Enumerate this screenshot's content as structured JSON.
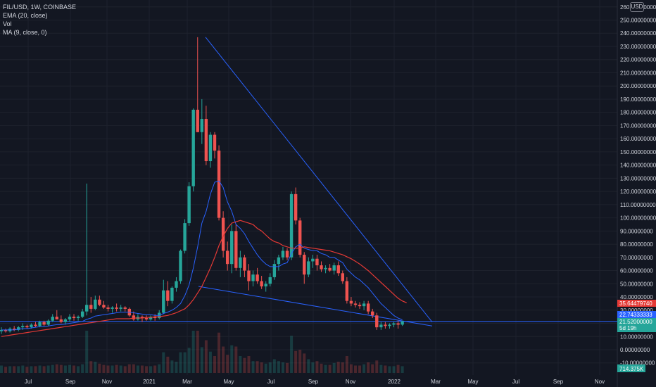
{
  "legend": {
    "symbol": "FIL/USD, 1W, COINBASE",
    "ema": "EMA (20, close)",
    "vol": "Vol",
    "ma": "MA (9, close, 0)"
  },
  "currency_button": "USD",
  "price_tags": {
    "ma_value": "35.64479740",
    "ema_value": "22.74333333",
    "last_price": "21.52000000",
    "countdown": "5d 19h",
    "volume": "714.375K"
  },
  "colors": {
    "background": "#131722",
    "up": "#26a69a",
    "down": "#ef5350",
    "ema": "#2962ff",
    "ma": "#e53935",
    "trendline": "#2962ff",
    "grid": "#1e222d",
    "axis_text": "#d1d4dc"
  },
  "chart_data": {
    "type": "candlestick",
    "title": "FIL/USD, 1W, COINBASE",
    "y_axis": {
      "min": -10,
      "max": 260,
      "step": 10,
      "tick_labels": [
        "-10.00000000",
        "0.00000000",
        "10.00000000",
        "20.00000000",
        "30.00000000",
        "40.00000000",
        "50.00000000",
        "60.00000000",
        "70.00000000",
        "80.00000000",
        "90.00000000",
        "100.00000000",
        "110.00000000",
        "120.00000000",
        "130.00000000",
        "140.00000000",
        "150.00000000",
        "160.00000000",
        "170.00000000",
        "180.00000000",
        "190.00000000",
        "200.00000000",
        "210.00000000",
        "220.00000000",
        "230.00000000",
        "240.00000000",
        "250.00000000",
        "260.00000000"
      ]
    },
    "x_axis": {
      "tick_labels": [
        "Jul",
        "Sep",
        "Nov",
        "2021",
        "Mar",
        "May",
        "Jul",
        "Sep",
        "Nov",
        "2022",
        "Mar",
        "May",
        "Jul",
        "Sep",
        "Nov"
      ]
    },
    "grid": true,
    "candles": [
      [
        14,
        17,
        12,
        15
      ],
      [
        15,
        16,
        13,
        14
      ],
      [
        14,
        17,
        13,
        16
      ],
      [
        16,
        18,
        14,
        15
      ],
      [
        15,
        18,
        14,
        17
      ],
      [
        17,
        20,
        15,
        18
      ],
      [
        18,
        19,
        16,
        17
      ],
      [
        17,
        20,
        16,
        19
      ],
      [
        19,
        21,
        17,
        18
      ],
      [
        18,
        22,
        17,
        21
      ],
      [
        21,
        22,
        18,
        19
      ],
      [
        19,
        23,
        18,
        22
      ],
      [
        22,
        27,
        21,
        25
      ],
      [
        25,
        30,
        23,
        23
      ],
      [
        23,
        26,
        20,
        21
      ],
      [
        21,
        24,
        19,
        23
      ],
      [
        23,
        27,
        21,
        25
      ],
      [
        25,
        27,
        22,
        24
      ],
      [
        24,
        26,
        22,
        25
      ],
      [
        25,
        31,
        24,
        29
      ],
      [
        29,
        126,
        26,
        34
      ],
      [
        34,
        40,
        28,
        31
      ],
      [
        31,
        41,
        30,
        38
      ],
      [
        38,
        41,
        33,
        34
      ],
      [
        34,
        37,
        31,
        32
      ],
      [
        32,
        34,
        29,
        31
      ],
      [
        31,
        33,
        28,
        32
      ],
      [
        32,
        35,
        29,
        31
      ],
      [
        31,
        34,
        29,
        32
      ],
      [
        32,
        33,
        29,
        31
      ],
      [
        31,
        32,
        25,
        26
      ],
      [
        26,
        29,
        22,
        23
      ],
      [
        23,
        27,
        22,
        25
      ],
      [
        25,
        26,
        21,
        24
      ],
      [
        24,
        26,
        22,
        23
      ],
      [
        23,
        26,
        22,
        25
      ],
      [
        25,
        27,
        22,
        24
      ],
      [
        24,
        30,
        23,
        28
      ],
      [
        28,
        53,
        27,
        45
      ],
      [
        45,
        52,
        33,
        37
      ],
      [
        37,
        48,
        35,
        47
      ],
      [
        47,
        55,
        44,
        52
      ],
      [
        52,
        76,
        50,
        75
      ],
      [
        75,
        99,
        73,
        96
      ],
      [
        96,
        127,
        94,
        124
      ],
      [
        124,
        183,
        120,
        182
      ],
      [
        182,
        237,
        165,
        165
      ],
      [
        165,
        190,
        156,
        175
      ],
      [
        175,
        185,
        140,
        143
      ],
      [
        143,
        165,
        138,
        163
      ],
      [
        163,
        165,
        145,
        151
      ],
      [
        151,
        155,
        98,
        100
      ],
      [
        100,
        105,
        70,
        75
      ],
      [
        75,
        82,
        60,
        65
      ],
      [
        65,
        95,
        58,
        90
      ],
      [
        90,
        95,
        60,
        62
      ],
      [
        62,
        75,
        55,
        70
      ],
      [
        70,
        72,
        55,
        60
      ],
      [
        60,
        65,
        45,
        52
      ],
      [
        52,
        60,
        48,
        57
      ],
      [
        57,
        62,
        50,
        52
      ],
      [
        52,
        56,
        46,
        48
      ],
      [
        48,
        52,
        44,
        50
      ],
      [
        50,
        58,
        48,
        55
      ],
      [
        55,
        68,
        53,
        65
      ],
      [
        65,
        72,
        60,
        70
      ],
      [
        70,
        78,
        68,
        75
      ],
      [
        75,
        77,
        68,
        70
      ],
      [
        70,
        120,
        68,
        118
      ],
      [
        118,
        123,
        95,
        98
      ],
      [
        98,
        100,
        70,
        72
      ],
      [
        72,
        74,
        50,
        57
      ],
      [
        57,
        70,
        55,
        67
      ],
      [
        67,
        72,
        62,
        69
      ],
      [
        69,
        72,
        60,
        64
      ],
      [
        64,
        67,
        59,
        61
      ],
      [
        61,
        64,
        58,
        62
      ],
      [
        62,
        65,
        59,
        60
      ],
      [
        60,
        66,
        57,
        64
      ],
      [
        64,
        67,
        56,
        58
      ],
      [
        58,
        60,
        50,
        52
      ],
      [
        52,
        55,
        35,
        37
      ],
      [
        37,
        40,
        33,
        35
      ],
      [
        35,
        37,
        32,
        34
      ],
      [
        34,
        36,
        31,
        33
      ],
      [
        33,
        37,
        30,
        35
      ],
      [
        35,
        37,
        27,
        29
      ],
      [
        29,
        31,
        24,
        26
      ],
      [
        26,
        28,
        15,
        17
      ],
      [
        17,
        21,
        15,
        19
      ],
      [
        19,
        21,
        16,
        18
      ],
      [
        18,
        20,
        16,
        19
      ],
      [
        19,
        21,
        17,
        20
      ],
      [
        20,
        22,
        16,
        19
      ],
      [
        19,
        22,
        18,
        21.5
      ]
    ],
    "ema_20": [
      15,
      15,
      15,
      15,
      15.5,
      16,
      16,
      16.5,
      17,
      17.5,
      17.5,
      18,
      18.5,
      19,
      19,
      19.5,
      20,
      20.5,
      21,
      21.5,
      23,
      24,
      25.5,
      26,
      26.5,
      27,
      27.5,
      28,
      28.5,
      28.5,
      28.5,
      28,
      27.5,
      27,
      26.5,
      26.5,
      26,
      26,
      27.5,
      28.5,
      30,
      32,
      35,
      41,
      49,
      62,
      78,
      96,
      105,
      118,
      127,
      128,
      123,
      112,
      105,
      95,
      92,
      88,
      82,
      77,
      72,
      68,
      65,
      63,
      63,
      63,
      65,
      66,
      73,
      78,
      80,
      77,
      76,
      75,
      75,
      73,
      72,
      70,
      70,
      68,
      66,
      61,
      58,
      55,
      53,
      50,
      47,
      43,
      39,
      35,
      32,
      29,
      26,
      24,
      22.7
    ],
    "ma_9": [
      10,
      10.5,
      11,
      11.5,
      12,
      12.5,
      13,
      13.5,
      14,
      14.5,
      15,
      15.5,
      16,
      16.5,
      17,
      17.5,
      18,
      18.5,
      19,
      19.5,
      20,
      20.5,
      21,
      21.5,
      22,
      22.5,
      23,
      23.5,
      23.5,
      23.5,
      23.5,
      24,
      24,
      24,
      24.5,
      24.5,
      25,
      25,
      25.5,
      26,
      27,
      28,
      29.5,
      31,
      34,
      38,
      43,
      48,
      55,
      62,
      70,
      79,
      86,
      92,
      96,
      97,
      98,
      97,
      96,
      95,
      92,
      90,
      87,
      84,
      82,
      81,
      79,
      78,
      77,
      77,
      77,
      78,
      77.5,
      77,
      76.5,
      76,
      75.5,
      75,
      74,
      73,
      72,
      70.5,
      69,
      67,
      65,
      62.5,
      60,
      57,
      54,
      51,
      48,
      45,
      42,
      39,
      37,
      35.6
    ]
  }
}
